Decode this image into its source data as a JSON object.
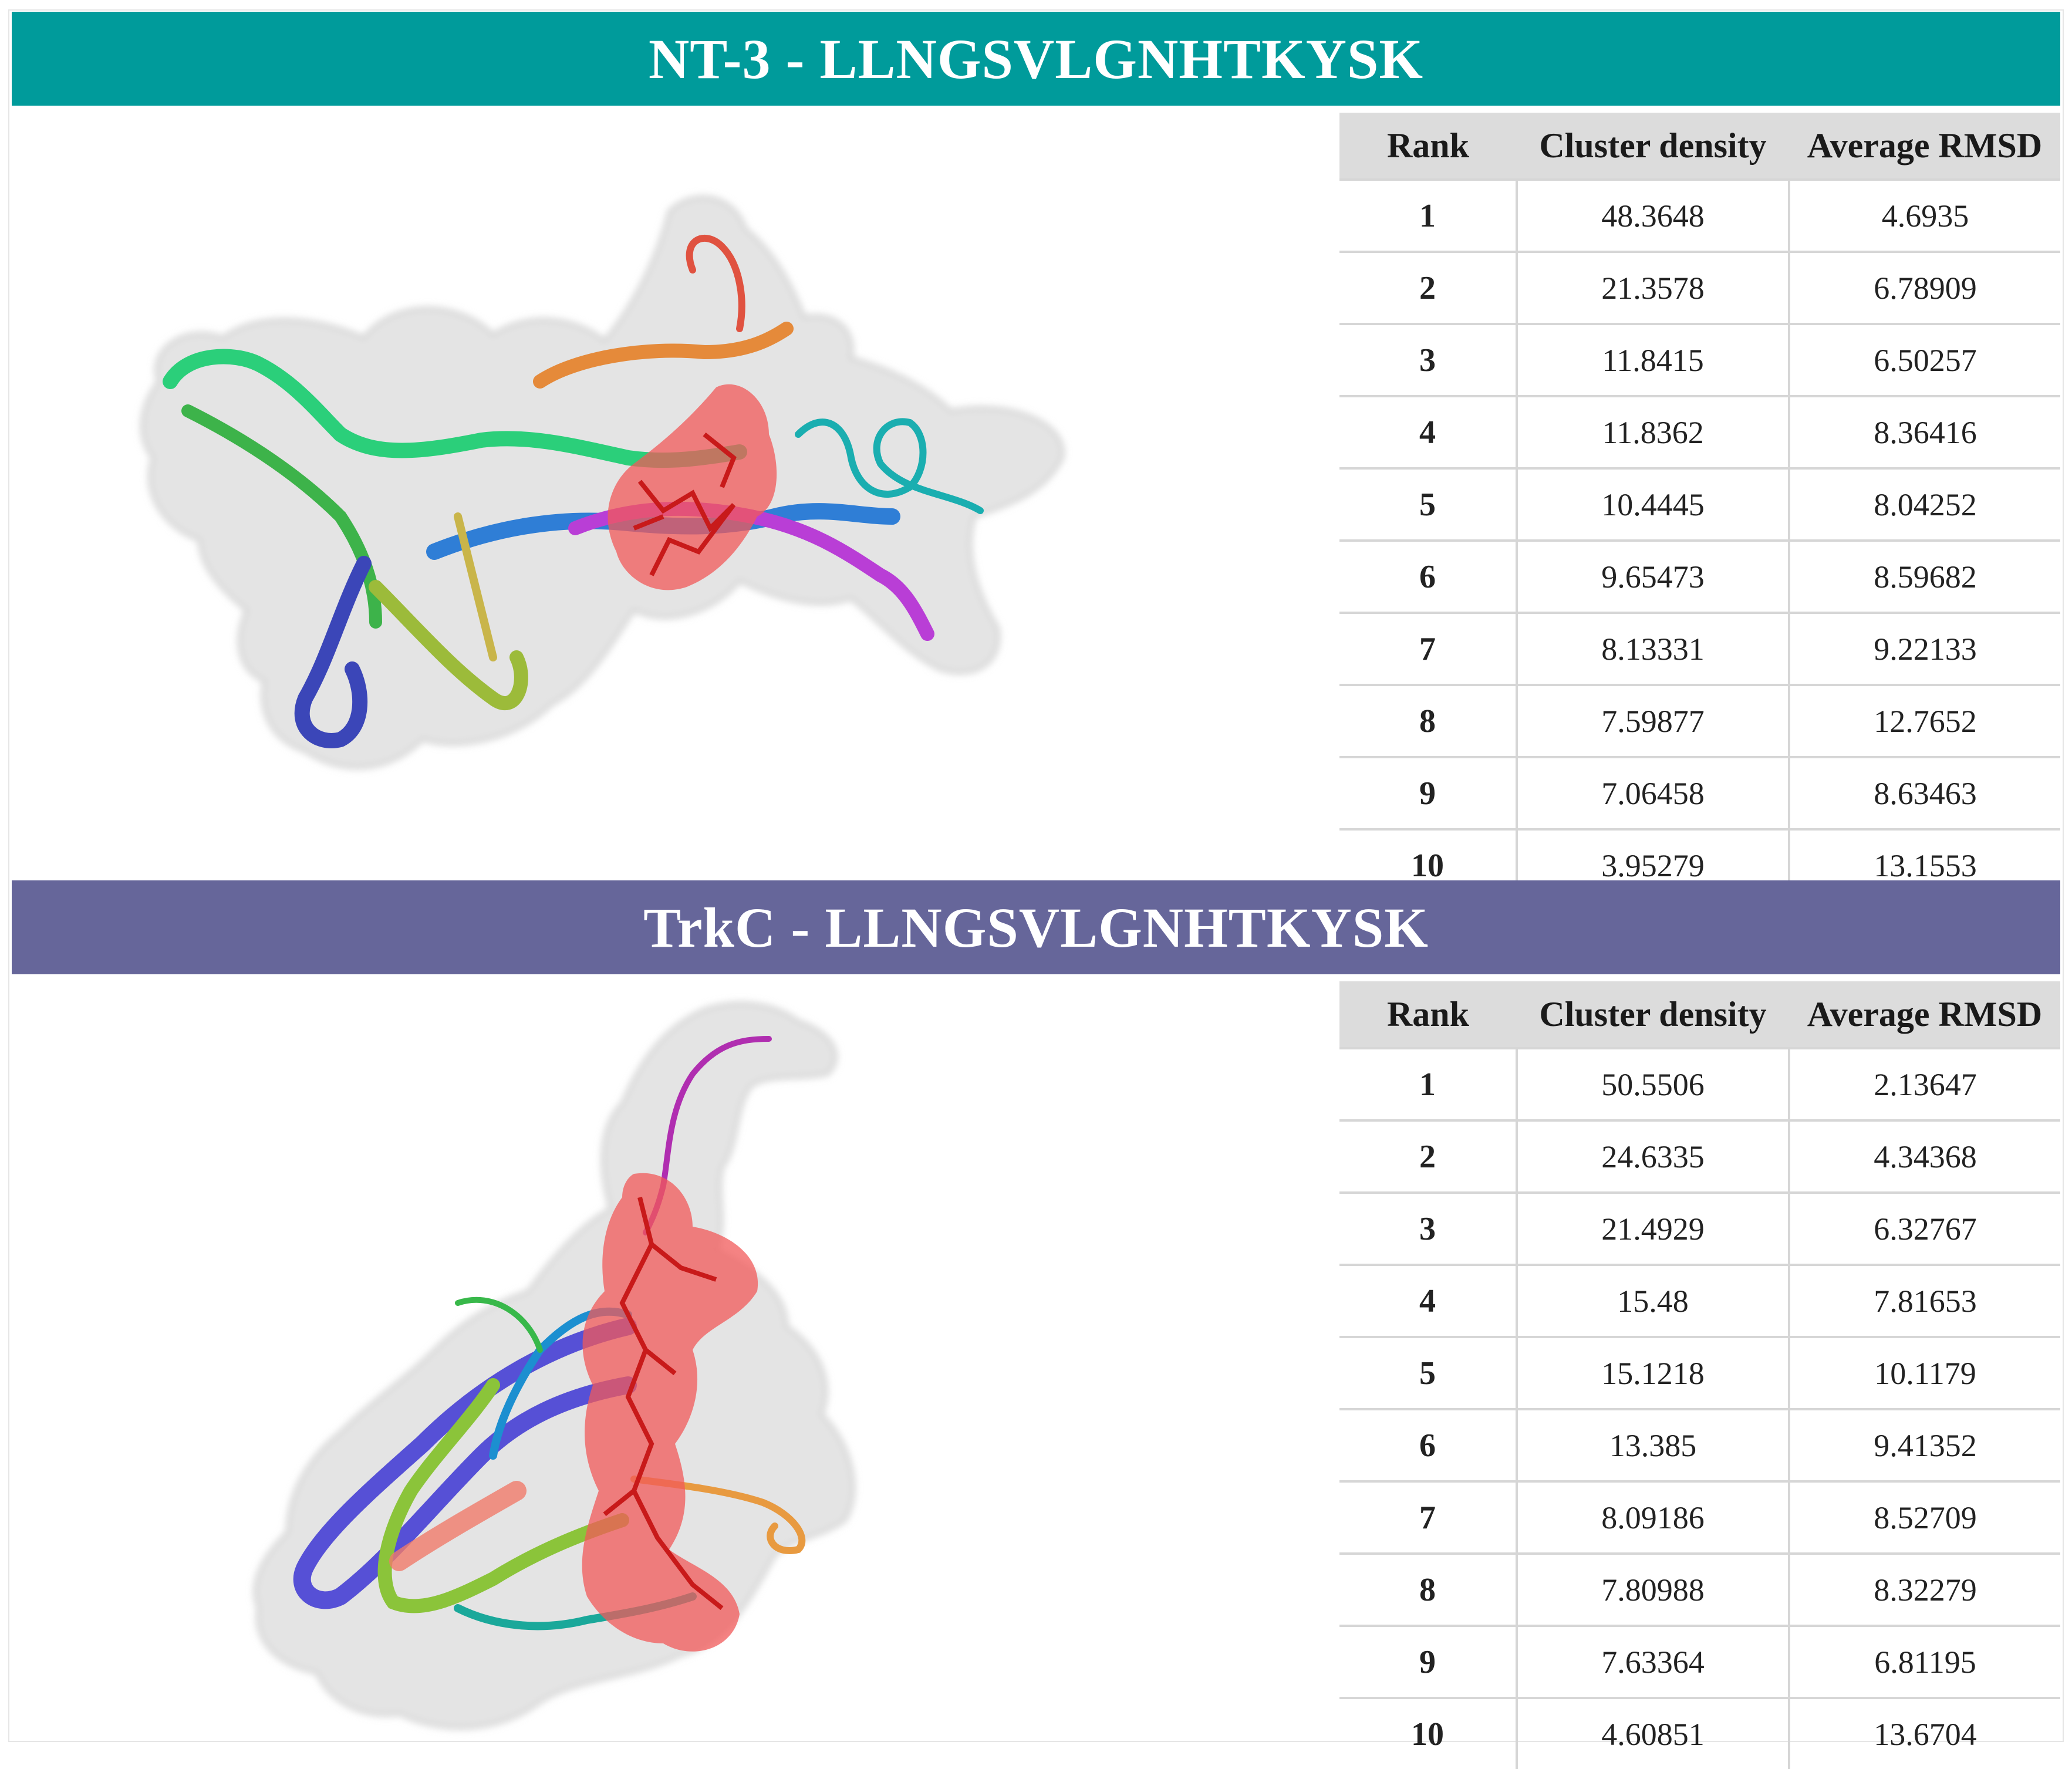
{
  "panels": [
    {
      "title": "NT-3 - LLNGSVLGNHTKYSK",
      "banner_color": "#009b9b",
      "molecule_icon": "protein-peptide-docking-structure",
      "headers": [
        "Rank",
        "Cluster density",
        "Average RMSD"
      ],
      "rows": [
        {
          "rank": "1",
          "density": "48.3648",
          "rmsd": "4.6935"
        },
        {
          "rank": "2",
          "density": "21.3578",
          "rmsd": "6.78909"
        },
        {
          "rank": "3",
          "density": "11.8415",
          "rmsd": "6.50257"
        },
        {
          "rank": "4",
          "density": "11.8362",
          "rmsd": "8.36416"
        },
        {
          "rank": "5",
          "density": "10.4445",
          "rmsd": "8.04252"
        },
        {
          "rank": "6",
          "density": "9.65473",
          "rmsd": "8.59682"
        },
        {
          "rank": "7",
          "density": "8.13331",
          "rmsd": "9.22133"
        },
        {
          "rank": "8",
          "density": "7.59877",
          "rmsd": "12.7652"
        },
        {
          "rank": "9",
          "density": "7.06458",
          "rmsd": "8.63463"
        },
        {
          "rank": "10",
          "density": "3.95279",
          "rmsd": "13.1553"
        }
      ]
    },
    {
      "title": "TrkC - LLNGSVLGNHTKYSK",
      "banner_color": "#66669a",
      "molecule_icon": "protein-peptide-docking-structure",
      "headers": [
        "Rank",
        "Cluster density",
        "Average RMSD"
      ],
      "rows": [
        {
          "rank": "1",
          "density": "50.5506",
          "rmsd": "2.13647"
        },
        {
          "rank": "2",
          "density": "24.6335",
          "rmsd": "4.34368"
        },
        {
          "rank": "3",
          "density": "21.4929",
          "rmsd": "6.32767"
        },
        {
          "rank": "4",
          "density": "15.48",
          "rmsd": "7.81653"
        },
        {
          "rank": "5",
          "density": "15.1218",
          "rmsd": "10.1179"
        },
        {
          "rank": "6",
          "density": "13.385",
          "rmsd": "9.41352"
        },
        {
          "rank": "7",
          "density": "8.09186",
          "rmsd": "8.52709"
        },
        {
          "rank": "8",
          "density": "7.80988",
          "rmsd": "8.32279"
        },
        {
          "rank": "9",
          "density": "7.63364",
          "rmsd": "6.81195"
        },
        {
          "rank": "10",
          "density": "4.60851",
          "rmsd": "13.6704"
        }
      ]
    }
  ]
}
